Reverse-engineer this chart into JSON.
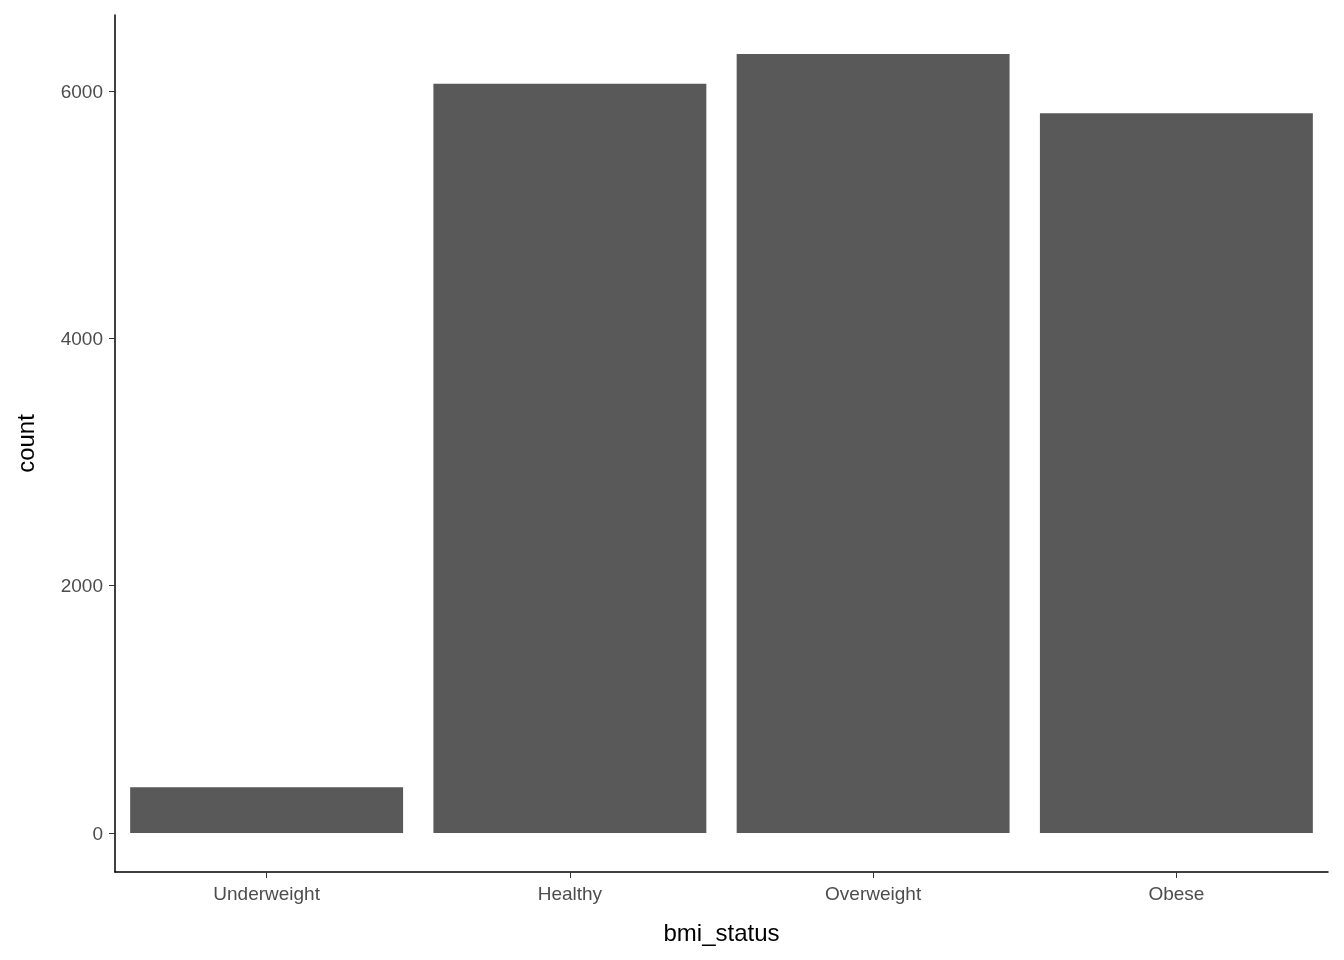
{
  "chart_data": {
    "type": "bar",
    "xlabel": "bmi_status",
    "ylabel": "count",
    "categories": [
      "Underweight",
      "Healthy",
      "Overweight",
      "Obese"
    ],
    "values": [
      370,
      6060,
      6300,
      5820
    ],
    "color": "#595959",
    "ylim": [
      -315,
      6615
    ],
    "yticks": [
      0,
      2000,
      4000,
      6000
    ],
    "grid": false
  }
}
